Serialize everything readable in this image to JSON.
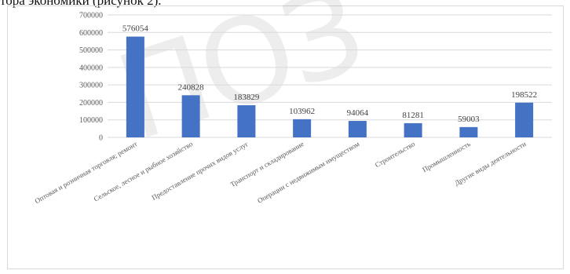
{
  "caption": "тора экономики (рисунок 2).",
  "watermark": "ПОЗ",
  "colors": {
    "bar": "#4472c4",
    "grid": "#d9d9d9"
  },
  "chart_data": {
    "type": "bar",
    "title": "",
    "xlabel": "",
    "ylabel": "",
    "ylim": [
      0,
      700000
    ],
    "yticks": [
      0,
      100000,
      200000,
      300000,
      400000,
      500000,
      600000,
      700000
    ],
    "grid": true,
    "categories": [
      "Оптовая и розничная торговля; ремонт",
      "Сельское, лесное и рыбное хозяйство",
      "Предоставление прочих видов услуг",
      "Транспорт и складирование",
      "Операции с недвижимым имуществом",
      "Строительство",
      "Промышленность",
      "Другие виды деятельности"
    ],
    "values": [
      576054,
      240828,
      183829,
      103962,
      94064,
      81281,
      59003,
      198522
    ]
  }
}
